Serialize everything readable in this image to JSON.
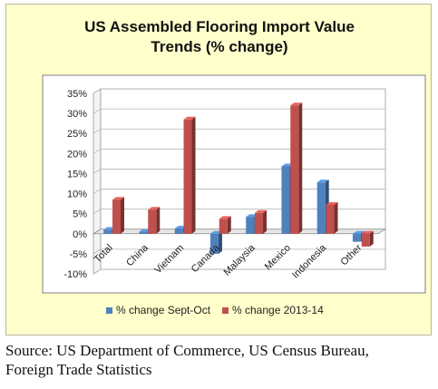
{
  "chart_data": {
    "type": "bar",
    "title": "US Assembled Flooring Import Value\nTrends  (% change)",
    "categories": [
      "Total",
      "China",
      "Vietnam",
      "Canada",
      "Malaysia",
      "Mexico",
      "Indonesia",
      "Other"
    ],
    "series": [
      {
        "name": "% change Sept-Oct",
        "values": [
          1,
          0.5,
          1.3,
          -5,
          4.2,
          16.8,
          12.8,
          -2
        ],
        "color": "#4f81bd"
      },
      {
        "name": "% change 2013-14",
        "values": [
          8.5,
          6,
          28.5,
          3.7,
          5.2,
          32,
          7.2,
          -3.2
        ],
        "color": "#c0504d"
      }
    ],
    "ylim": [
      -10,
      35
    ],
    "yticks": [
      "-10%",
      "-5%",
      "0%",
      "5%",
      "10%",
      "15%",
      "20%",
      "25%",
      "30%",
      "35%"
    ],
    "grid": true,
    "legend": "bottom",
    "xlabel": "",
    "ylabel": ""
  },
  "source": "Source: US Department of Commerce, US Census Bureau,\nForeign Trade Statistics"
}
